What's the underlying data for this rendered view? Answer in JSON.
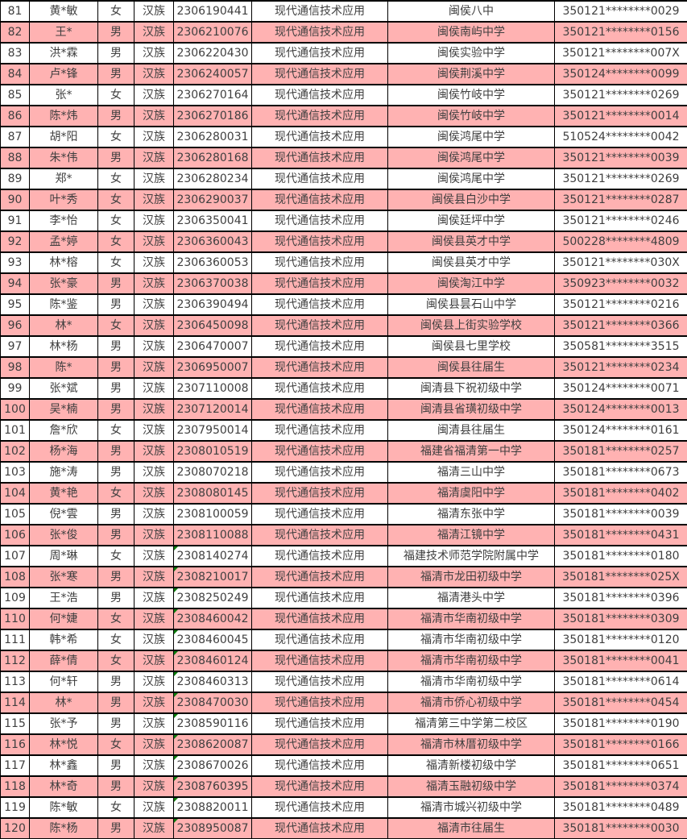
{
  "colors": {
    "row_highlight": "#ffb2b2",
    "grid_line": "#000000",
    "cell_text": "#3f3f3f",
    "text_format_marker_green": "#0b7d0b",
    "row_default_background": "#ffffff"
  },
  "table": {
    "rows": [
      {
        "cells": [
          "81",
          "黄*敏",
          "女",
          "汉族",
          "2306190441",
          "现代通信技术应用",
          "闽侯八中",
          "350121********0029"
        ],
        "highlight": false,
        "marker": false
      },
      {
        "cells": [
          "82",
          "王*",
          "男",
          "汉族",
          "2306210076",
          "现代通信技术应用",
          "闽侯南屿中学",
          "350121********0156"
        ],
        "highlight": true,
        "marker": false
      },
      {
        "cells": [
          "83",
          "洪*霖",
          "男",
          "汉族",
          "2306220430",
          "现代通信技术应用",
          "闽侯实验中学",
          "350121********007X"
        ],
        "highlight": false,
        "marker": false
      },
      {
        "cells": [
          "84",
          "卢*锋",
          "男",
          "汉族",
          "2306240057",
          "现代通信技术应用",
          "闽侯荆溪中学",
          "350124********0099"
        ],
        "highlight": true,
        "marker": false
      },
      {
        "cells": [
          "85",
          "张*",
          "女",
          "汉族",
          "2306270164",
          "现代通信技术应用",
          "闽侯竹岐中学",
          "350121********0269"
        ],
        "highlight": false,
        "marker": false
      },
      {
        "cells": [
          "86",
          "陈*炜",
          "男",
          "汉族",
          "2306270186",
          "现代通信技术应用",
          "闽侯竹岐中学",
          "350121********0014"
        ],
        "highlight": true,
        "marker": false
      },
      {
        "cells": [
          "87",
          "胡*阳",
          "女",
          "汉族",
          "2306280031",
          "现代通信技术应用",
          "闽侯鸿尾中学",
          "510524********0042"
        ],
        "highlight": false,
        "marker": false
      },
      {
        "cells": [
          "88",
          "朱*伟",
          "男",
          "汉族",
          "2306280168",
          "现代通信技术应用",
          "闽侯鸿尾中学",
          "350121********0039"
        ],
        "highlight": true,
        "marker": false
      },
      {
        "cells": [
          "89",
          "郑*",
          "女",
          "汉族",
          "2306280234",
          "现代通信技术应用",
          "闽侯鸿尾中学",
          "350121********0269"
        ],
        "highlight": false,
        "marker": false
      },
      {
        "cells": [
          "90",
          "叶*秀",
          "女",
          "汉族",
          "2306290037",
          "现代通信技术应用",
          "闽侯县白沙中学",
          "350121********0287"
        ],
        "highlight": true,
        "marker": false
      },
      {
        "cells": [
          "91",
          "李*怡",
          "女",
          "汉族",
          "2306350041",
          "现代通信技术应用",
          "闽侯廷坪中学",
          "350121********0246"
        ],
        "highlight": false,
        "marker": false
      },
      {
        "cells": [
          "92",
          "孟*婷",
          "女",
          "汉族",
          "2306360043",
          "现代通信技术应用",
          "闽侯县英才中学",
          "500228********4809"
        ],
        "highlight": true,
        "marker": false
      },
      {
        "cells": [
          "93",
          "林*榕",
          "女",
          "汉族",
          "2306360053",
          "现代通信技术应用",
          "闽侯县英才中学",
          "350121********030X"
        ],
        "highlight": false,
        "marker": false
      },
      {
        "cells": [
          "94",
          "张*豪",
          "男",
          "汉族",
          "2306370038",
          "现代通信技术应用",
          "闽侯淘江中学",
          "350923********0032"
        ],
        "highlight": true,
        "marker": false
      },
      {
        "cells": [
          "95",
          "陈*鉴",
          "男",
          "汉族",
          "2306390494",
          "现代通信技术应用",
          "闽侯县昙石山中学",
          "350121********0216"
        ],
        "highlight": false,
        "marker": false
      },
      {
        "cells": [
          "96",
          "林*",
          "女",
          "汉族",
          "2306450098",
          "现代通信技术应用",
          "闽侯县上街实验学校",
          "350121********0366"
        ],
        "highlight": true,
        "marker": false
      },
      {
        "cells": [
          "97",
          "林*杨",
          "男",
          "汉族",
          "2306470007",
          "现代通信技术应用",
          "闽侯县七里学校",
          "350581********3515"
        ],
        "highlight": false,
        "marker": false
      },
      {
        "cells": [
          "98",
          "陈*",
          "男",
          "汉族",
          "2306950007",
          "现代通信技术应用",
          "闽侯县往届生",
          "350121********0234"
        ],
        "highlight": true,
        "marker": false
      },
      {
        "cells": [
          "99",
          "张*斌",
          "男",
          "汉族",
          "2307110008",
          "现代通信技术应用",
          "闽清县下祝初级中学",
          "350124********0071"
        ],
        "highlight": false,
        "marker": false
      },
      {
        "cells": [
          "100",
          "吴*楠",
          "男",
          "汉族",
          "2307120014",
          "现代通信技术应用",
          "闽清县省璜初级中学",
          "350124********0013"
        ],
        "highlight": true,
        "marker": false
      },
      {
        "cells": [
          "101",
          "詹*欣",
          "女",
          "汉族",
          "2307950014",
          "现代通信技术应用",
          "闽清县往届生",
          "350124********0161"
        ],
        "highlight": false,
        "marker": false
      },
      {
        "cells": [
          "102",
          "杨*海",
          "男",
          "汉族",
          "2308010519",
          "现代通信技术应用",
          "福建省福清第一中学",
          "350181********0257"
        ],
        "highlight": true,
        "marker": false
      },
      {
        "cells": [
          "103",
          "施*涛",
          "男",
          "汉族",
          "2308070218",
          "现代通信技术应用",
          "福清三山中学",
          "350181********0673"
        ],
        "highlight": false,
        "marker": false
      },
      {
        "cells": [
          "104",
          "黄*艳",
          "女",
          "汉族",
          "2308080145",
          "现代通信技术应用",
          "福清虞阳中学",
          "350181********0402"
        ],
        "highlight": true,
        "marker": false
      },
      {
        "cells": [
          "105",
          "倪*雲",
          "男",
          "汉族",
          "2308100059",
          "现代通信技术应用",
          "福清东张中学",
          "350181********0039"
        ],
        "highlight": false,
        "marker": false
      },
      {
        "cells": [
          "106",
          "张*俊",
          "男",
          "汉族",
          "2308110088",
          "现代通信技术应用",
          "福清江镜中学",
          "350181********0431"
        ],
        "highlight": true,
        "marker": false
      },
      {
        "cells": [
          "107",
          "周*琳",
          "女",
          "汉族",
          "2308140274",
          "现代通信技术应用",
          "福建技术师范学院附属中学",
          "350181********0180"
        ],
        "highlight": false,
        "marker": true
      },
      {
        "cells": [
          "108",
          "张*寒",
          "男",
          "汉族",
          "2308210017",
          "现代通信技术应用",
          "福清市龙田初级中学",
          "350181********025X"
        ],
        "highlight": true,
        "marker": true
      },
      {
        "cells": [
          "109",
          "王*浩",
          "男",
          "汉族",
          "2308250249",
          "现代通信技术应用",
          "福清港头中学",
          "350181********0396"
        ],
        "highlight": false,
        "marker": true
      },
      {
        "cells": [
          "110",
          "何*婕",
          "女",
          "汉族",
          "2308460042",
          "现代通信技术应用",
          "福清市华南初级中学",
          "350181********0309"
        ],
        "highlight": true,
        "marker": true
      },
      {
        "cells": [
          "111",
          "韩*希",
          "女",
          "汉族",
          "2308460045",
          "现代通信技术应用",
          "福清市华南初级中学",
          "350181********0120"
        ],
        "highlight": false,
        "marker": true
      },
      {
        "cells": [
          "112",
          "薛*倩",
          "女",
          "汉族",
          "2308460124",
          "现代通信技术应用",
          "福清市华南初级中学",
          "350181********0041"
        ],
        "highlight": true,
        "marker": true
      },
      {
        "cells": [
          "113",
          "何*轩",
          "男",
          "汉族",
          "2308460313",
          "现代通信技术应用",
          "福清市华南初级中学",
          "350181********0614"
        ],
        "highlight": false,
        "marker": true
      },
      {
        "cells": [
          "114",
          "林*",
          "男",
          "汉族",
          "2308470030",
          "现代通信技术应用",
          "福清市侨心初级中学",
          "350181********0454"
        ],
        "highlight": true,
        "marker": true
      },
      {
        "cells": [
          "115",
          "张*予",
          "男",
          "汉族",
          "2308590116",
          "现代通信技术应用",
          "福清第三中学第二校区",
          "350181********0190"
        ],
        "highlight": false,
        "marker": true
      },
      {
        "cells": [
          "116",
          "林*悦",
          "女",
          "汉族",
          "2308620087",
          "现代通信技术应用",
          "福清市林厝初级中学",
          "350181********0166"
        ],
        "highlight": true,
        "marker": true
      },
      {
        "cells": [
          "117",
          "林*鑫",
          "男",
          "汉族",
          "2308670026",
          "现代通信技术应用",
          "福清新楼初级中学",
          "350181********0651"
        ],
        "highlight": false,
        "marker": true
      },
      {
        "cells": [
          "118",
          "林*奇",
          "男",
          "汉族",
          "2308760395",
          "现代通信技术应用",
          "福清玉融初级中学",
          "350181********0374"
        ],
        "highlight": true,
        "marker": true
      },
      {
        "cells": [
          "119",
          "陈*敏",
          "女",
          "汉族",
          "2308820011",
          "现代通信技术应用",
          "福清市城兴初级中学",
          "350181********0489"
        ],
        "highlight": false,
        "marker": true
      },
      {
        "cells": [
          "120",
          "陈*杨",
          "男",
          "汉族",
          "2308950087",
          "现代通信技术应用",
          "福清市往届生",
          "350181********0030"
        ],
        "highlight": true,
        "marker": true
      }
    ]
  }
}
